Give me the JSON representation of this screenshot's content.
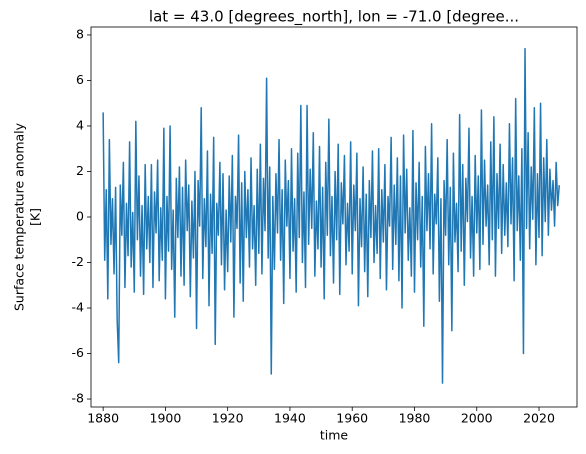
{
  "chart_data": {
    "type": "line",
    "title": "lat = 43.0 [degrees_north], lon = -71.0 [degree...",
    "xlabel": "time",
    "ylabel": [
      "Surface temperature anomaly",
      "[K]"
    ],
    "color": "#1f77b4",
    "xlim": [
      1876.1,
      2032.2
    ],
    "ylim": [
      -8.35,
      8.35
    ],
    "xticks": [
      1880,
      1900,
      1920,
      1940,
      1960,
      1980,
      2000,
      2020
    ],
    "yticks": [
      -8,
      -6,
      -4,
      -2,
      0,
      2,
      4,
      6,
      8
    ],
    "x": [
      1880,
      1880.5,
      1881,
      1881.5,
      1882,
      1882.5,
      1883,
      1883.5,
      1884,
      1884.5,
      1885,
      1885.5,
      1886,
      1886.5,
      1887,
      1887.5,
      1888,
      1888.5,
      1889,
      1889.5,
      1890,
      1890.5,
      1891,
      1891.5,
      1892,
      1892.5,
      1893,
      1893.5,
      1894,
      1894.5,
      1895,
      1895.5,
      1896,
      1896.5,
      1897,
      1897.5,
      1898,
      1898.5,
      1899,
      1899.5,
      1900,
      1900.5,
      1901,
      1901.5,
      1902,
      1902.5,
      1903,
      1903.5,
      1904,
      1904.5,
      1905,
      1905.5,
      1906,
      1906.5,
      1907,
      1907.5,
      1908,
      1908.5,
      1909,
      1909.5,
      1910,
      1910.5,
      1911,
      1911.5,
      1912,
      1912.5,
      1913,
      1913.5,
      1914,
      1914.5,
      1915,
      1915.5,
      1916,
      1916.5,
      1917,
      1917.5,
      1918,
      1918.5,
      1919,
      1919.5,
      1920,
      1920.5,
      1921,
      1921.5,
      1922,
      1922.5,
      1923,
      1923.5,
      1924,
      1924.5,
      1925,
      1925.5,
      1926,
      1926.5,
      1927,
      1927.5,
      1928,
      1928.5,
      1929,
      1929.5,
      1930,
      1930.5,
      1931,
      1931.5,
      1932,
      1932.5,
      1933,
      1933.5,
      1934,
      1934.5,
      1935,
      1935.5,
      1936,
      1936.5,
      1937,
      1937.5,
      1938,
      1938.5,
      1939,
      1939.5,
      1940,
      1940.5,
      1941,
      1941.5,
      1942,
      1942.5,
      1943,
      1943.5,
      1944,
      1944.5,
      1945,
      1945.5,
      1946,
      1946.5,
      1947,
      1947.5,
      1948,
      1948.5,
      1949,
      1949.5,
      1950,
      1950.5,
      1951,
      1951.5,
      1952,
      1952.5,
      1953,
      1953.5,
      1954,
      1954.5,
      1955,
      1955.5,
      1956,
      1956.5,
      1957,
      1957.5,
      1958,
      1958.5,
      1959,
      1959.5,
      1960,
      1960.5,
      1961,
      1961.5,
      1962,
      1962.5,
      1963,
      1963.5,
      1964,
      1964.5,
      1965,
      1965.5,
      1966,
      1966.5,
      1967,
      1967.5,
      1968,
      1968.5,
      1969,
      1969.5,
      1970,
      1970.5,
      1971,
      1971.5,
      1972,
      1972.5,
      1973,
      1973.5,
      1974,
      1974.5,
      1975,
      1975.5,
      1976,
      1976.5,
      1977,
      1977.5,
      1978,
      1978.5,
      1979,
      1979.5,
      1980,
      1980.5,
      1981,
      1981.5,
      1982,
      1982.5,
      1983,
      1983.5,
      1984,
      1984.5,
      1985,
      1985.5,
      1986,
      1986.5,
      1987,
      1987.5,
      1988,
      1988.5,
      1989,
      1989.5,
      1990,
      1990.5,
      1991,
      1991.5,
      1992,
      1992.5,
      1993,
      1993.5,
      1994,
      1994.5,
      1995,
      1995.5,
      1996,
      1996.5,
      1997,
      1997.5,
      1998,
      1998.5,
      1999,
      1999.5,
      2000,
      2000.5,
      2001,
      2001.5,
      2002,
      2002.5,
      2003,
      2003.5,
      2004,
      2004.5,
      2005,
      2005.5,
      2006,
      2006.5,
      2007,
      2007.5,
      2008,
      2008.5,
      2009,
      2009.5,
      2010,
      2010.5,
      2011,
      2011.5,
      2012,
      2012.5,
      2013,
      2013.5,
      2014,
      2014.5,
      2015,
      2015.5,
      2016,
      2016.5,
      2017,
      2017.5,
      2018,
      2018.5,
      2019,
      2019.5,
      2020,
      2020.5,
      2021,
      2021.5,
      2022,
      2022.5,
      2023,
      2023.5,
      2024,
      2024.5,
      2025,
      2025.5,
      2026,
      2026.5
    ],
    "values": [
      4.6,
      -1.9,
      1.2,
      -3.6,
      3.4,
      -1.2,
      0.8,
      -2.5,
      1.3,
      -4.5,
      -6.4,
      1.4,
      -0.8,
      2.4,
      -3.1,
      0.6,
      -1.7,
      3.3,
      -2.2,
      0.2,
      -3.3,
      4.2,
      -1.0,
      1.8,
      -2.6,
      0.5,
      -3.4,
      2.3,
      -1.4,
      0.9,
      -2.0,
      2.3,
      -3.1,
      1.1,
      -0.7,
      2.5,
      -2.8,
      0.4,
      -1.9,
      3.9,
      -3.6,
      0.9,
      -1.5,
      4.0,
      -2.3,
      0.3,
      -4.4,
      1.7,
      -0.9,
      2.2,
      -2.6,
      1.3,
      -3.0,
      2.5,
      -0.6,
      1.4,
      -3.5,
      0.7,
      -1.8,
      2.0,
      -4.9,
      1.6,
      -0.4,
      4.8,
      -2.7,
      0.8,
      -1.3,
      2.9,
      -3.9,
      1.0,
      -1.6,
      3.5,
      -5.6,
      0.6,
      -0.8,
      2.4,
      -2.1,
      1.9,
      -3.2,
      0.3,
      -2.4,
      1.8,
      -1.1,
      2.7,
      -4.4,
      0.9,
      -0.5,
      3.6,
      -2.9,
      1.5,
      -3.7,
      2.0,
      -0.9,
      1.2,
      -2.2,
      2.6,
      -1.4,
      0.5,
      -3.0,
      2.1,
      -1.6,
      3.2,
      -2.5,
      1.7,
      -0.6,
      6.1,
      -1.8,
      2.2,
      -6.9,
      0.9,
      -2.3,
      1.9,
      -0.7,
      3.4,
      -1.9,
      1.2,
      -3.8,
      2.5,
      -0.4,
      1.6,
      -2.7,
      3.0,
      -1.5,
      0.8,
      -3.3,
      2.8,
      -0.9,
      4.9,
      -2.0,
      1.1,
      -3.1,
      4.9,
      -1.2,
      2.1,
      -0.5,
      3.7,
      -2.6,
      0.7,
      -1.4,
      3.1,
      -2.2,
      1.3,
      -3.6,
      2.4,
      -0.8,
      4.3,
      -1.7,
      0.9,
      -2.9,
      2.0,
      -1.0,
      3.2,
      -3.4,
      1.5,
      -0.3,
      2.7,
      -2.1,
      0.6,
      -1.5,
      3.3,
      -2.5,
      1.4,
      -0.6,
      2.8,
      -3.9,
      0.8,
      -1.3,
      2.2,
      -2.4,
      1.0,
      -3.5,
      1.6,
      -0.9,
      2.9,
      -2.0,
      0.5,
      -1.6,
      3.0,
      -2.7,
      1.2,
      -1.1,
      2.3,
      -3.2,
      0.9,
      -0.4,
      3.5,
      -2.3,
      1.4,
      -1.2,
      2.6,
      -2.8,
      1.8,
      -4.0,
      3.6,
      -0.7,
      2.1,
      -1.9,
      0.4,
      -2.6,
      3.8,
      -3.3,
      1.5,
      -1.0,
      2.4,
      -2.2,
      0.9,
      -4.8,
      3.1,
      -0.6,
      1.9,
      -1.4,
      4.1,
      -2.5,
      1.0,
      -0.3,
      2.6,
      -3.7,
      0.8,
      -7.3,
      1.6,
      -0.8,
      3.4,
      -2.1,
      1.3,
      -5.0,
      2.8,
      -1.1,
      0.6,
      -2.4,
      4.5,
      -1.5,
      2.3,
      -3.0,
      1.7,
      -0.2,
      3.9,
      -1.8,
      0.9,
      -2.6,
      2.7,
      -0.7,
      1.8,
      -2.3,
      4.7,
      -1.2,
      2.5,
      -0.4,
      1.4,
      -2.1,
      3.3,
      -1.0,
      4.4,
      -2.6,
      1.9,
      -0.5,
      3.2,
      -1.6,
      2.3,
      -0.8,
      1.5,
      -1.3,
      4.1,
      -0.3,
      2.6,
      -2.8,
      5.2,
      -0.6,
      1.8,
      -1.9,
      3.0,
      -6.0,
      7.4,
      -0.5,
      3.7,
      -1.4,
      2.2,
      -0.1,
      4.8,
      -2.1,
      1.9,
      -0.9,
      5.0,
      -1.7,
      2.6,
      -0.2,
      3.4,
      -0.8,
      2.1,
      0.3,
      1.6,
      -0.4,
      2.4,
      0.5,
      1.4
    ]
  }
}
